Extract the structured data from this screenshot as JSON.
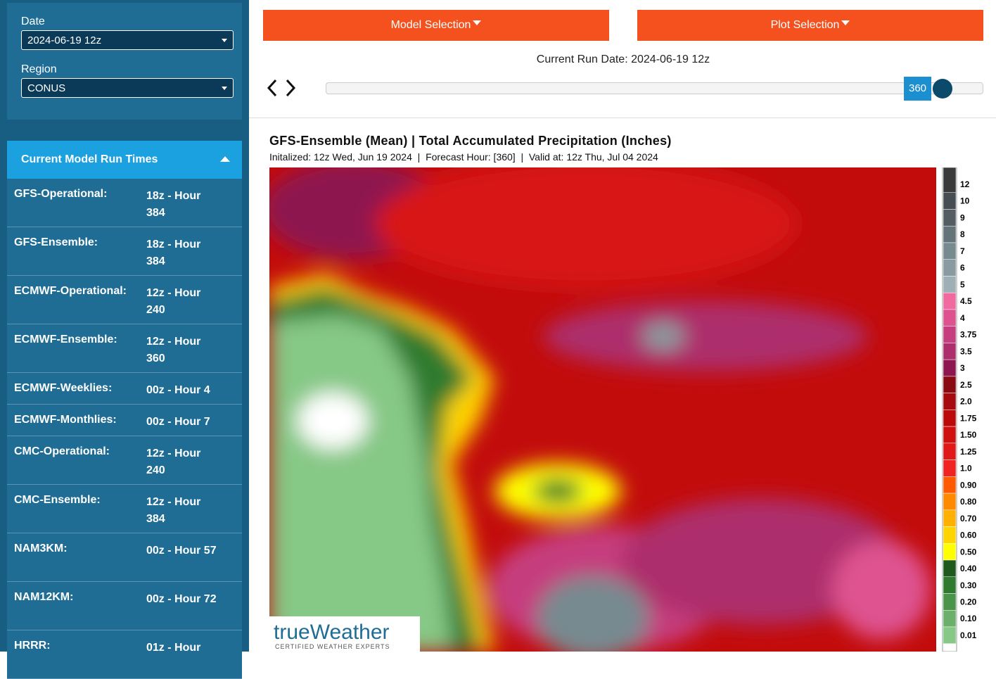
{
  "sidebar": {
    "date_label": "Date",
    "date_value": "2024-06-19 12z",
    "region_label": "Region",
    "region_value": "CONUS"
  },
  "model_runs": {
    "title": "Current Model Run Times",
    "rows": [
      {
        "model": "GFS-Operational:",
        "run": "18z - Hour 384"
      },
      {
        "model": "GFS-Ensemble:",
        "run": "18z - Hour 384"
      },
      {
        "model": "ECMWF-Operational:",
        "run": "12z - Hour 240"
      },
      {
        "model": "ECMWF-Ensemble:",
        "run": "12z - Hour 360"
      },
      {
        "model": "ECMWF-Weeklies:",
        "run": "00z - Hour 4"
      },
      {
        "model": "ECMWF-Monthlies:",
        "run": "00z - Hour 7"
      },
      {
        "model": "CMC-Operational:",
        "run": "12z - Hour 240"
      },
      {
        "model": "CMC-Ensemble:",
        "run": "12z - Hour 384"
      },
      {
        "model": "NAM3KM:",
        "run": "00z - Hour 57"
      },
      {
        "model": "NAM12KM:",
        "run": "00z - Hour 72"
      },
      {
        "model": "HRRR:",
        "run": "01z - Hour"
      }
    ]
  },
  "toolbar": {
    "model_selection": "Model Selection",
    "plot_selection": "Plot Selection",
    "run_date_label": "Current Run Date:",
    "run_date": "2024-06-19 12z",
    "forecast_hour": 360
  },
  "plot": {
    "title": "GFS-Ensemble (Mean) | Total Accumulated Precipitation (Inches)",
    "subtitle": "Initalized: 12z Wed, Jun 19 2024  |  Forecast Hour: [360]  |  Valid at: 12z Thu, Jul 04 2024",
    "legend": [
      {
        "label": "12",
        "color": "#3a3a3a"
      },
      {
        "label": "10",
        "color": "#474e53"
      },
      {
        "label": "9",
        "color": "#545d62"
      },
      {
        "label": "8",
        "color": "#657479"
      },
      {
        "label": "7",
        "color": "#778a90"
      },
      {
        "label": "6",
        "color": "#899ba1"
      },
      {
        "label": "5",
        "color": "#9eb0b5"
      },
      {
        "label": "4.5",
        "color": "#f06aa0"
      },
      {
        "label": "4",
        "color": "#de5290"
      },
      {
        "label": "3.75",
        "color": "#c63e7e"
      },
      {
        "label": "3.5",
        "color": "#ad2e6c"
      },
      {
        "label": "3",
        "color": "#8e1650"
      },
      {
        "label": "2.5",
        "color": "#8a0a14"
      },
      {
        "label": "2.0",
        "color": "#a60a0e"
      },
      {
        "label": "1.75",
        "color": "#bc0a0a"
      },
      {
        "label": "1.50",
        "color": "#d01010"
      },
      {
        "label": "1.25",
        "color": "#e01818"
      },
      {
        "label": "1.0",
        "color": "#f02222"
      },
      {
        "label": "0.90",
        "color": "#ff5a00"
      },
      {
        "label": "0.80",
        "color": "#ff8a00"
      },
      {
        "label": "0.70",
        "color": "#ffb000"
      },
      {
        "label": "0.60",
        "color": "#ffd400"
      },
      {
        "label": "0.50",
        "color": "#ffff00"
      },
      {
        "label": "0.40",
        "color": "#1e5a1e"
      },
      {
        "label": "0.30",
        "color": "#2e7a2e"
      },
      {
        "label": "0.20",
        "color": "#4a944a"
      },
      {
        "label": "0.10",
        "color": "#6ab06a"
      },
      {
        "label": "0.01",
        "color": "#86c886"
      }
    ],
    "logo": "trueWeather",
    "logo_tagline": "CERTIFIED WEATHER EXPERTS"
  }
}
